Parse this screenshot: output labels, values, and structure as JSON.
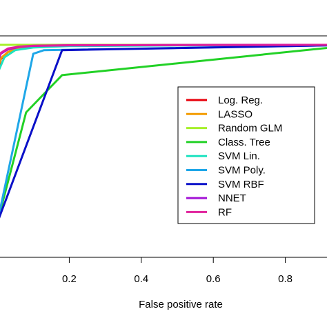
{
  "chart_data": {
    "type": "line",
    "title": "",
    "xlabel": "False positive rate",
    "ylabel": "",
    "xlim": [
      0,
      1
    ],
    "ylim": [
      0,
      1
    ],
    "x_ticks": [
      0.2,
      0.4,
      0.6,
      0.8
    ],
    "x_tick_labels": [
      "0.2",
      "0.4",
      "0.6",
      "0.8"
    ],
    "grid": false,
    "legend_position": "right",
    "series": [
      {
        "name": "Log. Reg.",
        "color": "#e8000b",
        "x": [
          0,
          0.002,
          0.01,
          0.03,
          0.06,
          0.1,
          0.2,
          0.5,
          0.9,
          1.0
        ],
        "y": [
          0.8,
          0.86,
          0.92,
          0.96,
          0.98,
          0.99,
          0.995,
          0.998,
          1.0,
          1.0
        ]
      },
      {
        "name": "LASSO",
        "color": "#f39c00",
        "x": [
          0,
          0.002,
          0.01,
          0.03,
          0.06,
          0.1,
          0.2,
          0.5,
          0.9,
          1.0
        ],
        "y": [
          0.8,
          0.87,
          0.925,
          0.96,
          0.98,
          0.99,
          0.995,
          0.998,
          1.0,
          1.0
        ]
      },
      {
        "name": "Random GLM",
        "color": "#a6f02a",
        "x": [
          0,
          0.02,
          0.2,
          0.5,
          0.9,
          1.0
        ],
        "y": [
          1.0,
          1.0,
          1.0,
          1.0,
          1.0,
          1.0
        ]
      },
      {
        "name": "Class. Tree",
        "color": "#22d126",
        "x": [
          0,
          0.08,
          0.18,
          1.0
        ],
        "y": [
          0.0,
          0.62,
          0.83,
          1.0
        ]
      },
      {
        "name": "SVM Lin.",
        "color": "#1ee3c0",
        "x": [
          0,
          0.005,
          0.02,
          0.05,
          0.1,
          0.2,
          0.5,
          1.0
        ],
        "y": [
          0.78,
          0.86,
          0.93,
          0.97,
          0.985,
          0.993,
          0.997,
          1.0
        ]
      },
      {
        "name": "SVM Poly.",
        "color": "#1fa7e8",
        "x": [
          0,
          0.1,
          0.13,
          1.0
        ],
        "y": [
          0.0,
          0.95,
          0.97,
          1.0
        ]
      },
      {
        "name": "SVM RBF",
        "color": "#0a10c8",
        "x": [
          0,
          0.18,
          1.0
        ],
        "y": [
          0.0,
          0.97,
          1.0
        ]
      },
      {
        "name": "NNET",
        "color": "#a313d6",
        "x": [
          0,
          0.002,
          0.01,
          0.03,
          0.06,
          0.1,
          0.2,
          0.5,
          1.0
        ],
        "y": [
          0.85,
          0.91,
          0.95,
          0.975,
          0.988,
          0.994,
          0.997,
          0.999,
          1.0
        ]
      },
      {
        "name": "RF",
        "color": "#e0209b",
        "x": [
          0,
          0.002,
          0.01,
          0.03,
          0.06,
          0.1,
          0.2,
          0.5,
          1.0
        ],
        "y": [
          0.86,
          0.92,
          0.955,
          0.98,
          0.99,
          0.995,
          0.998,
          0.999,
          1.0
        ]
      }
    ],
    "reference_line": {
      "y": 1.0,
      "color": "#000000"
    }
  }
}
